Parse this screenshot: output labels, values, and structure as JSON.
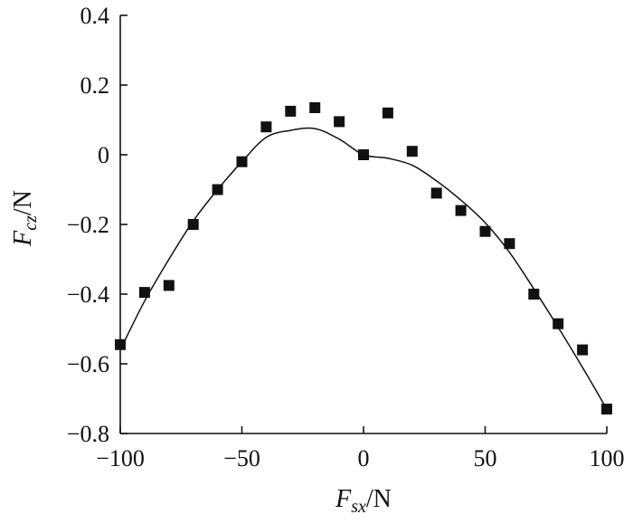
{
  "chart_data": {
    "type": "scatter",
    "xlim": [
      -100,
      100
    ],
    "ylim": [
      -0.8,
      0.4
    ],
    "x_ticks": [
      -100,
      -50,
      0,
      50,
      100
    ],
    "y_ticks": [
      -0.8,
      -0.6,
      -0.4,
      -0.2,
      0,
      0.2,
      0.4
    ],
    "x_tick_labels": [
      "−100",
      "−50",
      "0",
      "50",
      "100"
    ],
    "y_tick_labels": [
      "−0.8",
      "−0.6",
      "−0.4",
      "−0.2",
      "0",
      "0.2",
      "0.4"
    ],
    "xlabel": {
      "main": "F",
      "sub": "sx",
      "unit": "/N"
    },
    "ylabel": {
      "main": "F",
      "sub": "cz",
      "unit": "/N"
    },
    "grid": false,
    "series": [
      {
        "kind": "markers",
        "marker": "square",
        "x": [
          -100,
          -90,
          -80,
          -70,
          -60,
          -50,
          -40,
          -30,
          -20,
          -10,
          0,
          10,
          20,
          30,
          40,
          50,
          60,
          70,
          80,
          90,
          100
        ],
        "y": [
          -0.545,
          -0.395,
          -0.375,
          -0.2,
          -0.1,
          -0.02,
          0.08,
          0.125,
          0.135,
          0.095,
          0.0,
          0.12,
          0.01,
          -0.11,
          -0.16,
          -0.22,
          -0.255,
          -0.4,
          -0.485,
          -0.56,
          -0.73
        ]
      },
      {
        "kind": "line",
        "x": [
          -100,
          -90,
          -80,
          -70,
          -60,
          -50,
          -40,
          -30,
          -20,
          -10,
          0,
          10,
          20,
          30,
          40,
          50,
          60,
          70,
          80,
          90,
          100
        ],
        "y": [
          -0.56,
          -0.42,
          -0.3,
          -0.19,
          -0.1,
          -0.02,
          0.05,
          0.07,
          0.075,
          0.045,
          0.0,
          -0.01,
          -0.03,
          -0.075,
          -0.13,
          -0.195,
          -0.28,
          -0.385,
          -0.495,
          -0.61,
          -0.73
        ]
      }
    ],
    "colors": {
      "ink": "#111111"
    }
  }
}
